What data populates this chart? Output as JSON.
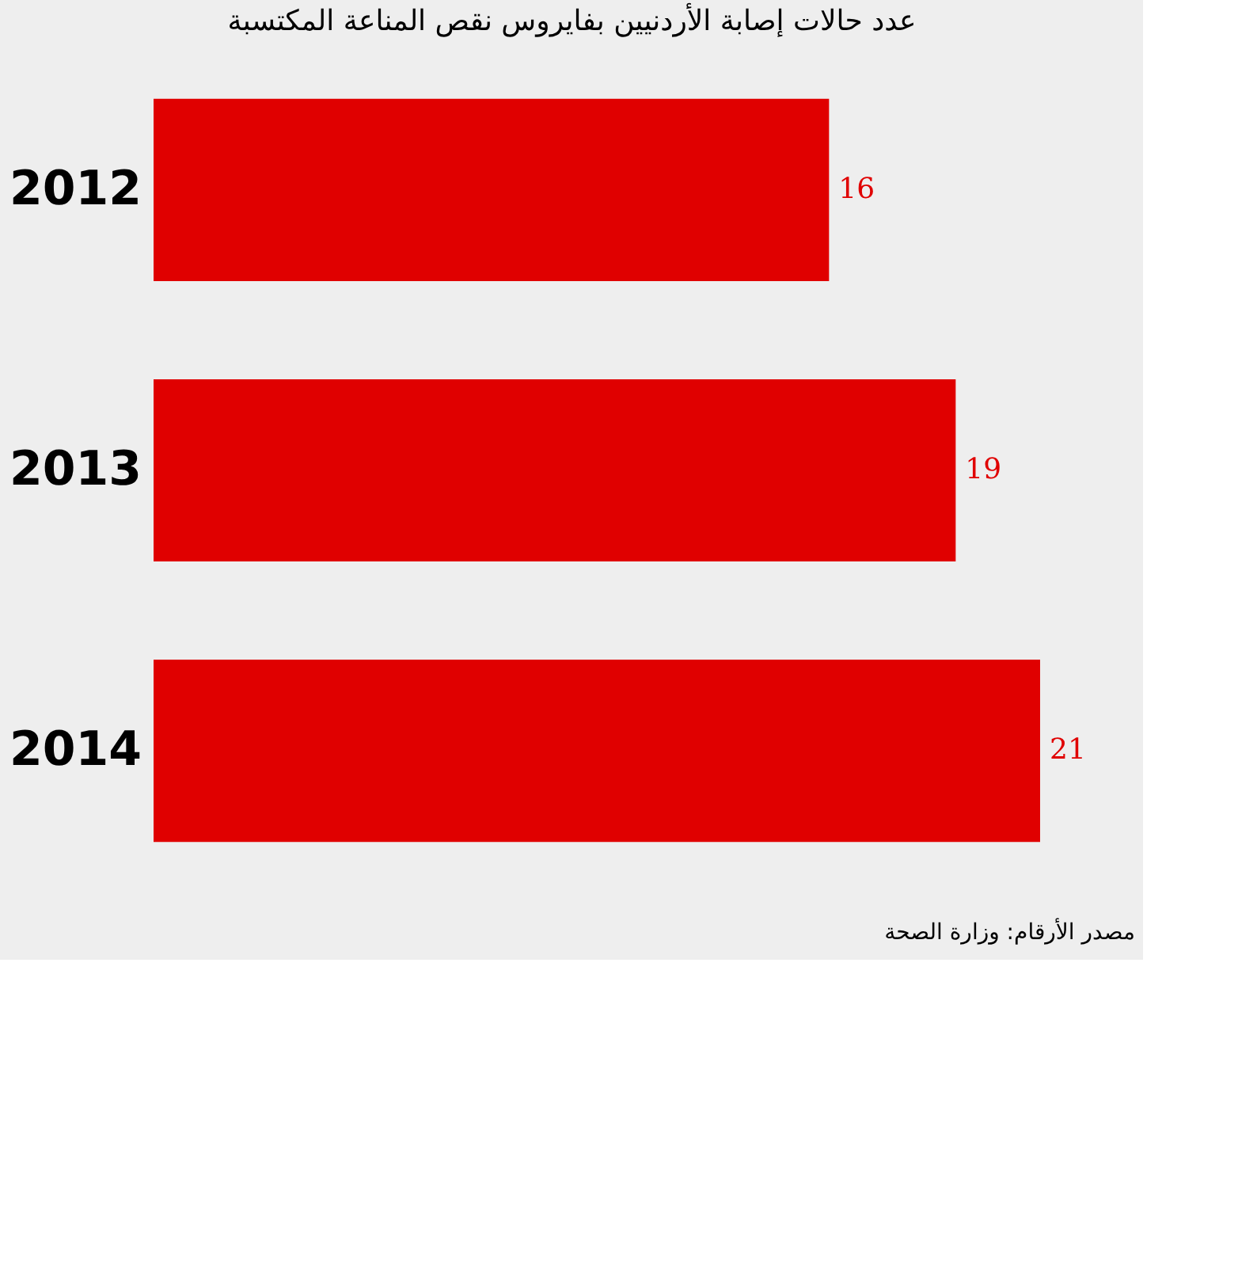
{
  "chart_data": {
    "type": "bar",
    "orientation": "horizontal",
    "title": "عدد حالات إصابة الأردنيين بفايروس نقص المناعة المكتسبة",
    "categories": [
      "2012",
      "2013",
      "2014"
    ],
    "values": [
      16,
      19,
      21
    ],
    "color": "#e00000",
    "data_labels": true,
    "annotations": [
      "مصدر الأرقام: وزارة الصحة"
    ]
  }
}
